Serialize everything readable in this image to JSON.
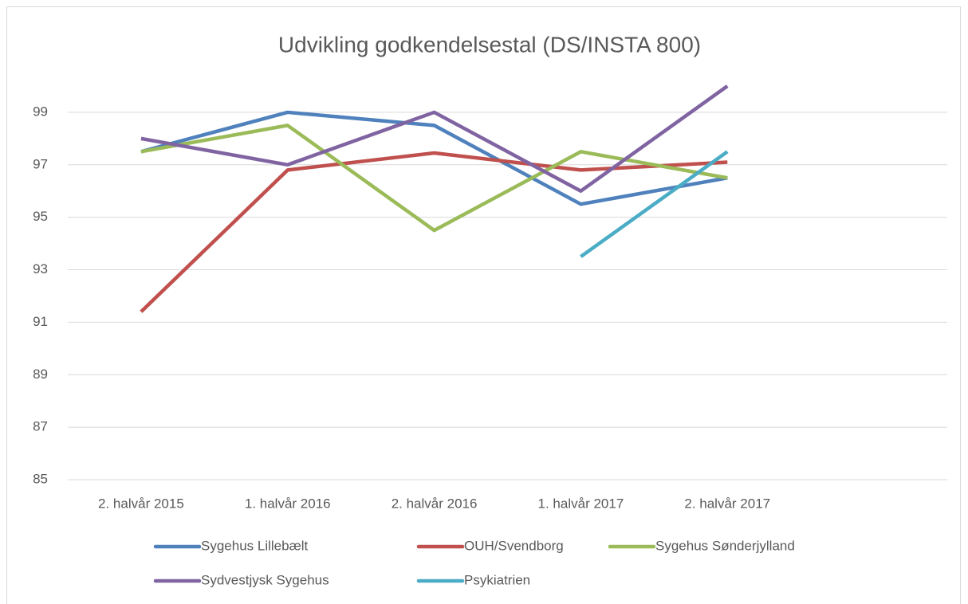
{
  "chart_data": {
    "type": "line",
    "title": "Udvikling godkendelsestal (DS/INSTA 800)",
    "categories": [
      "2. halvår 2015",
      "1. halvår 2016",
      "2. halvår 2016",
      "1. halvår 2017",
      "2. halvår 2017",
      null
    ],
    "series": [
      {
        "name": "Sygehus Lillebælt",
        "color": "#4f81bd",
        "values": [
          97.5,
          99,
          98.5,
          95.5,
          96.5,
          null
        ]
      },
      {
        "name": "OUH/Svendborg",
        "color": "#c0504d",
        "values": [
          91.4,
          96.8,
          97.45,
          96.8,
          97.1,
          null
        ]
      },
      {
        "name": "Sygehus Sønderjylland",
        "color": "#9bbb59",
        "values": [
          97.5,
          98.5,
          94.5,
          97.5,
          96.5,
          null
        ]
      },
      {
        "name": "Sydvestjysk Sygehus",
        "color": "#8064a2",
        "values": [
          98,
          97,
          99,
          96,
          100,
          null
        ]
      },
      {
        "name": "Psykiatrien",
        "color": "#4bacc6",
        "values": [
          null,
          null,
          null,
          93.5,
          97.5,
          null
        ]
      }
    ],
    "ylim": [
      85,
      100
    ],
    "yticks": [
      85,
      87,
      89,
      91,
      93,
      95,
      97,
      99
    ],
    "grid": true,
    "legend": "bottom"
  }
}
